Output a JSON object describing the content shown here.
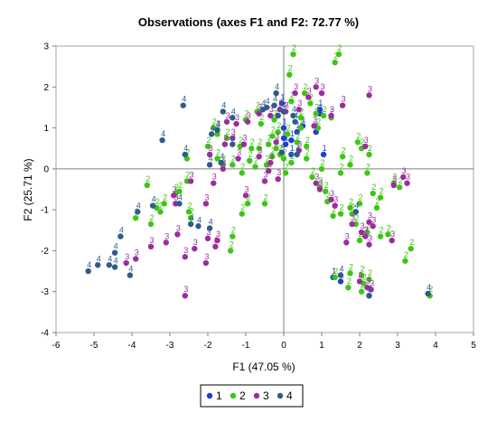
{
  "chart_data": {
    "type": "scatter",
    "title": "Observations (axes F1 and F2: 72.77 %)",
    "xlabel": "F1 (47.05 %)",
    "ylabel": "F2 (25.71 %)",
    "xlim": [
      -6,
      5
    ],
    "ylim": [
      -4,
      3
    ],
    "x_ticks": [
      "-6",
      "-5",
      "-4",
      "-3",
      "-2",
      "-1",
      "0",
      "1",
      "2",
      "3",
      "4",
      "5"
    ],
    "y_ticks": [
      "-4",
      "-3",
      "-2",
      "-1",
      "0",
      "1",
      "2",
      "3"
    ],
    "zero_lines": true,
    "grid": false,
    "legend_position": "bottom",
    "series": [
      {
        "name": "1",
        "label": "1",
        "color": "#1f3fd1",
        "points": [
          [
            0.0,
            0.75
          ],
          [
            0.05,
            0.6
          ],
          [
            0.35,
            0.9
          ],
          [
            0.2,
            0.35
          ],
          [
            0.5,
            1.05
          ],
          [
            0.85,
            0.9
          ],
          [
            1.05,
            0.35
          ],
          [
            0.95,
            1.35
          ],
          [
            0.0,
            1.0
          ],
          [
            1.3,
            -2.65
          ],
          [
            2.25,
            -3.1
          ],
          [
            1.5,
            -2.75
          ],
          [
            -0.05,
            1.6
          ],
          [
            0.2,
            0.7
          ],
          [
            0.95,
            1.45
          ]
        ]
      },
      {
        "name": "2",
        "label": "2",
        "color": "#3ec515",
        "points": [
          [
            0.25,
            2.8
          ],
          [
            1.45,
            2.8
          ],
          [
            1.35,
            2.6
          ],
          [
            0.15,
            2.3
          ],
          [
            0.55,
            1.85
          ],
          [
            0.2,
            1.65
          ],
          [
            0.7,
            1.6
          ],
          [
            0.85,
            1.35
          ],
          [
            1.05,
            1.3
          ],
          [
            1.25,
            1.25
          ],
          [
            0.45,
            1.25
          ],
          [
            -0.25,
            1.2
          ],
          [
            -0.7,
            1.4
          ],
          [
            -1.0,
            1.2
          ],
          [
            -0.6,
            1.1
          ],
          [
            -0.15,
            0.9
          ],
          [
            0.1,
            0.85
          ],
          [
            0.35,
            0.65
          ],
          [
            0.6,
            0.55
          ],
          [
            -0.4,
            0.6
          ],
          [
            -0.65,
            0.5
          ],
          [
            -0.85,
            0.5
          ],
          [
            -1.15,
            0.55
          ],
          [
            -1.5,
            0.75
          ],
          [
            -1.75,
            0.85
          ],
          [
            -1.85,
            1.0
          ],
          [
            -0.3,
            0.3
          ],
          [
            -0.1,
            0.35
          ],
          [
            0.0,
            0.25
          ],
          [
            0.2,
            0.15
          ],
          [
            -0.45,
            0.1
          ],
          [
            -0.75,
            0.05
          ],
          [
            -1.35,
            0.1
          ],
          [
            -1.6,
            0.1
          ],
          [
            -1.75,
            0.25
          ],
          [
            -2.0,
            0.55
          ],
          [
            -2.55,
            0.25
          ],
          [
            -1.1,
            -0.1
          ],
          [
            -0.4,
            -0.05
          ],
          [
            0.05,
            -0.1
          ],
          [
            0.75,
            -0.2
          ],
          [
            0.95,
            -0.45
          ],
          [
            1.1,
            -0.55
          ],
          [
            1.5,
            -0.1
          ],
          [
            1.55,
            0.3
          ],
          [
            1.75,
            0.1
          ],
          [
            2.05,
            0.5
          ],
          [
            2.25,
            0.35
          ],
          [
            2.2,
            -0.1
          ],
          [
            2.35,
            -0.6
          ],
          [
            2.55,
            -0.7
          ],
          [
            2.45,
            -0.95
          ],
          [
            2.0,
            -0.85
          ],
          [
            1.75,
            -0.95
          ],
          [
            1.8,
            -1.1
          ],
          [
            1.5,
            -1.1
          ],
          [
            1.3,
            -1.15
          ],
          [
            1.15,
            -0.8
          ],
          [
            1.9,
            -1.35
          ],
          [
            2.2,
            -1.55
          ],
          [
            2.55,
            -1.65
          ],
          [
            2.0,
            -1.75
          ],
          [
            2.75,
            -1.6
          ],
          [
            2.9,
            -0.35
          ],
          [
            3.05,
            -0.45
          ],
          [
            3.35,
            -1.95
          ],
          [
            3.2,
            -2.25
          ],
          [
            3.85,
            -3.1
          ],
          [
            2.05,
            -3.0
          ],
          [
            2.25,
            -2.7
          ],
          [
            2.05,
            -2.6
          ],
          [
            2.1,
            -2.8
          ],
          [
            1.35,
            -2.65
          ],
          [
            1.75,
            -2.55
          ],
          [
            1.7,
            -2.9
          ],
          [
            -0.95,
            -0.85
          ],
          [
            -0.5,
            -0.85
          ],
          [
            -1.35,
            -1.65
          ],
          [
            -1.4,
            -2.0
          ],
          [
            -2.55,
            -0.3
          ],
          [
            -2.85,
            -0.6
          ],
          [
            -3.15,
            -0.85
          ],
          [
            -3.25,
            -1.05
          ],
          [
            -2.45,
            -1.2
          ],
          [
            -2.5,
            -1.05
          ],
          [
            -3.35,
            -0.95
          ],
          [
            -3.5,
            -1.35
          ],
          [
            -3.9,
            -1.2
          ],
          [
            -2.75,
            -0.55
          ],
          [
            -3.6,
            -0.4
          ],
          [
            -1.1,
            -1.1
          ],
          [
            0.45,
            1.0
          ],
          [
            0.6,
            0.25
          ],
          [
            1.0,
            0.0
          ],
          [
            -0.2,
            0.5
          ],
          [
            -0.9,
            0.2
          ],
          [
            0.9,
            1.0
          ],
          [
            1.95,
            0.65
          ],
          [
            -0.3,
            0.8
          ]
        ]
      },
      {
        "name": "3",
        "label": "3",
        "color": "#9b2d9e",
        "points": [
          [
            0.85,
            2.0
          ],
          [
            1.0,
            1.85
          ],
          [
            0.65,
            1.75
          ],
          [
            0.3,
            1.85
          ],
          [
            2.25,
            1.8
          ],
          [
            1.55,
            1.55
          ],
          [
            1.25,
            1.3
          ],
          [
            0.8,
            1.05
          ],
          [
            0.4,
            1.45
          ],
          [
            -0.1,
            1.45
          ],
          [
            -0.35,
            1.3
          ],
          [
            -0.65,
            1.35
          ],
          [
            -0.95,
            1.15
          ],
          [
            -1.25,
            1.1
          ],
          [
            -1.5,
            1.15
          ],
          [
            -1.75,
            0.95
          ],
          [
            -1.35,
            0.75
          ],
          [
            -1.05,
            0.6
          ],
          [
            -0.65,
            0.3
          ],
          [
            -0.35,
            0.15
          ],
          [
            -1.2,
            0.25
          ],
          [
            -1.6,
            0.0
          ],
          [
            -1.95,
            0.35
          ],
          [
            -2.45,
            -0.3
          ],
          [
            -2.9,
            -0.65
          ],
          [
            -2.05,
            -0.85
          ],
          [
            -1.85,
            -0.35
          ],
          [
            -0.4,
            -0.05
          ],
          [
            -0.15,
            -0.25
          ],
          [
            -0.5,
            -0.3
          ],
          [
            0.85,
            -0.35
          ],
          [
            0.95,
            -0.5
          ],
          [
            1.25,
            -0.75
          ],
          [
            1.35,
            -0.9
          ],
          [
            1.8,
            -1.35
          ],
          [
            2.25,
            -1.3
          ],
          [
            2.35,
            -1.4
          ],
          [
            2.15,
            -1.65
          ],
          [
            2.85,
            -1.75
          ],
          [
            2.25,
            -1.85
          ],
          [
            2.05,
            -1.55
          ],
          [
            1.65,
            -1.8
          ],
          [
            3.25,
            -0.35
          ],
          [
            3.15,
            -0.2
          ],
          [
            2.9,
            -0.4
          ],
          [
            2.2,
            -2.9
          ],
          [
            2.0,
            -2.75
          ],
          [
            2.3,
            -2.95
          ],
          [
            -1.0,
            -0.65
          ],
          [
            -1.75,
            -1.75
          ],
          [
            -2.0,
            -1.7
          ],
          [
            -1.8,
            -1.9
          ],
          [
            -2.35,
            -1.95
          ],
          [
            -2.6,
            -2.15
          ],
          [
            -2.05,
            -2.3
          ],
          [
            -2.6,
            -3.1
          ],
          [
            -3.1,
            -1.8
          ],
          [
            -3.5,
            -1.9
          ],
          [
            -3.9,
            -2.2
          ],
          [
            -4.15,
            -2.3
          ],
          [
            -2.85,
            -0.85
          ],
          [
            -0.2,
            0.65
          ],
          [
            0.05,
            1.4
          ],
          [
            0.4,
            0.45
          ],
          [
            2.15,
            0.55
          ],
          [
            -2.8,
            -1.6
          ],
          [
            -1.55,
            0.6
          ]
        ]
      },
      {
        "name": "4",
        "label": "4",
        "color": "#2e5c8a",
        "points": [
          [
            -0.45,
            1.5
          ],
          [
            -0.2,
            1.85
          ],
          [
            -0.55,
            1.45
          ],
          [
            -1.6,
            1.4
          ],
          [
            -1.9,
            0.85
          ],
          [
            -2.6,
            0.35
          ],
          [
            -1.95,
            0.1
          ],
          [
            -1.65,
            0.15
          ],
          [
            -1.35,
            0.6
          ],
          [
            -1.75,
            0.95
          ],
          [
            -0.25,
            1.55
          ],
          [
            0.0,
            1.4
          ],
          [
            -2.65,
            1.55
          ],
          [
            -3.2,
            0.7
          ],
          [
            -3.45,
            -0.9
          ],
          [
            -3.85,
            -1.05
          ],
          [
            -4.3,
            -1.65
          ],
          [
            -4.45,
            -2.05
          ],
          [
            -4.6,
            -2.35
          ],
          [
            -4.9,
            -2.35
          ],
          [
            -5.15,
            -2.5
          ],
          [
            -4.45,
            -2.4
          ],
          [
            -4.05,
            -2.6
          ],
          [
            -2.75,
            -0.85
          ],
          [
            -1.95,
            -1.45
          ],
          [
            -2.25,
            -1.4
          ],
          [
            -0.05,
            0.4
          ],
          [
            0.3,
            1.15
          ],
          [
            0.25,
            1.3
          ],
          [
            3.8,
            -3.05
          ],
          [
            2.25,
            -3.1
          ],
          [
            1.9,
            -1.05
          ],
          [
            0.35,
            0.35
          ],
          [
            -0.15,
            1.3
          ],
          [
            -2.45,
            -1.35
          ],
          [
            -1.35,
            1.25
          ],
          [
            1.5,
            -2.6
          ]
        ]
      }
    ]
  }
}
